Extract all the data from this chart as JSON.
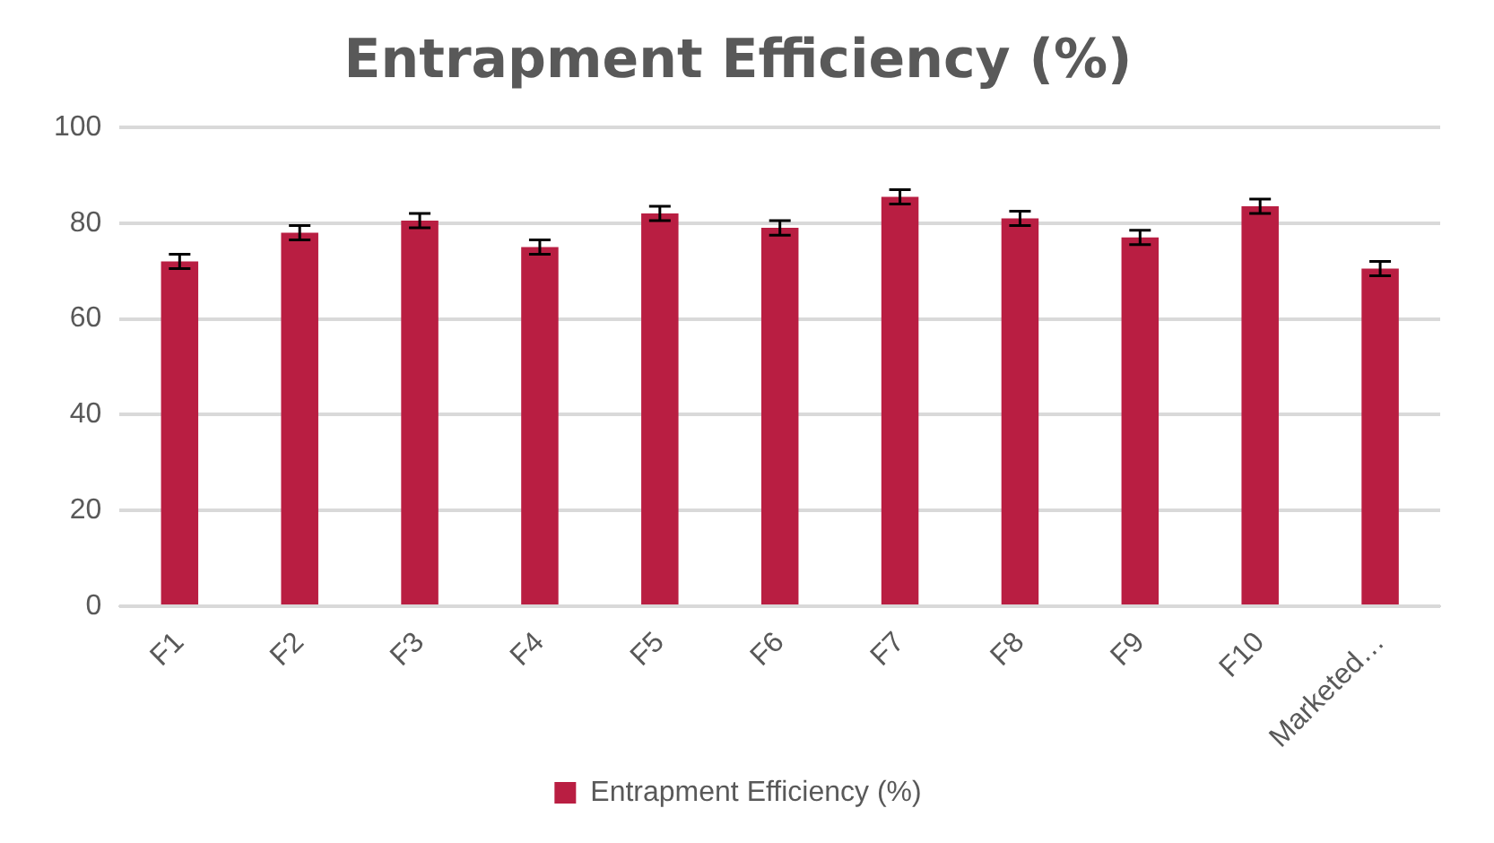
{
  "chart_data": {
    "type": "bar",
    "title": "Entrapment Efficiency (%)",
    "categories": [
      "F1",
      "F2",
      "F3",
      "F4",
      "F5",
      "F6",
      "F7",
      "F8",
      "F9",
      "F10",
      "Marketed…"
    ],
    "series": [
      {
        "name": "Entrapment Efficiency (%)",
        "color": "#b91e42",
        "values": [
          72,
          78,
          80.5,
          75,
          82,
          79,
          85.5,
          81,
          77,
          83.5,
          70.5
        ],
        "errors": [
          1.5,
          1.5,
          1.5,
          1.5,
          1.5,
          1.5,
          1.5,
          1.5,
          1.5,
          1.5,
          1.5
        ]
      }
    ],
    "ylim": [
      0,
      100
    ],
    "yticks": [
      0,
      20,
      40,
      60,
      80,
      100
    ],
    "grid": "y",
    "legend": "bottom"
  }
}
